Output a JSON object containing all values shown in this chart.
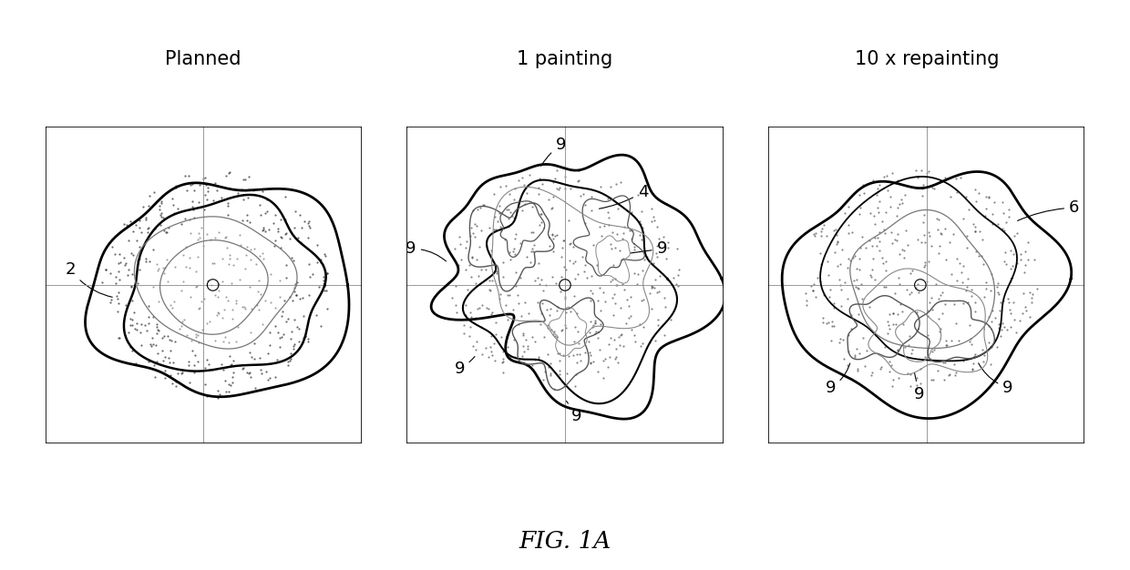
{
  "title": "FIG. 1A",
  "panel_titles": [
    "Planned",
    "1 painting",
    "10 x repainting"
  ],
  "background_color": "#ffffff",
  "line_color": "#000000",
  "dot_color": "#333333",
  "grid_line_color": "#999999",
  "font_size_title": 15,
  "font_size_labels": 13,
  "font_size_fig_title": 19
}
